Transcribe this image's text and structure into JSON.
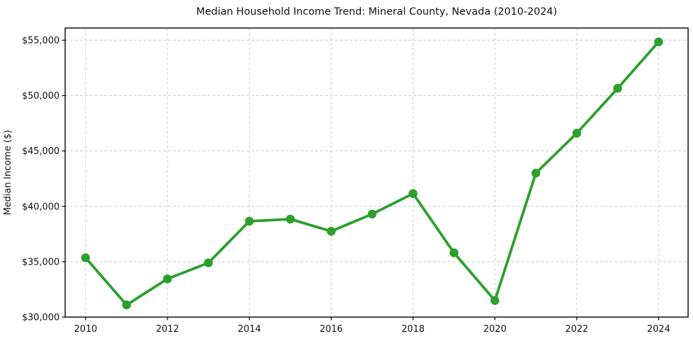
{
  "chart_data": {
    "type": "line",
    "title": "Median Household Income Trend: Mineral County, Nevada (2010-2024)",
    "xlabel": "",
    "ylabel": "Median Income ($)",
    "x": [
      2010,
      2011,
      2012,
      2013,
      2014,
      2015,
      2016,
      2017,
      2018,
      2019,
      2020,
      2021,
      2022,
      2023,
      2024
    ],
    "series": [
      {
        "name": "Median household income",
        "values": [
          35350,
          31100,
          33450,
          34900,
          38650,
          38850,
          37750,
          39300,
          41150,
          35800,
          31500,
          43000,
          46600,
          50650,
          54850
        ]
      }
    ],
    "xlim": [
      2009.5,
      2024.72
    ],
    "ylim": [
      30000,
      56100
    ],
    "x_ticks": [
      2010,
      2012,
      2014,
      2016,
      2018,
      2020,
      2022,
      2024
    ],
    "y_ticks": [
      30000,
      35000,
      40000,
      45000,
      50000,
      55000
    ],
    "y_tick_labels": [
      "$30,000",
      "$35,000",
      "$40,000",
      "$45,000",
      "$50,000",
      "$55,000"
    ],
    "grid": true,
    "grid_style": "dashed",
    "legend": false,
    "marker": "circle",
    "colors": {
      "line": "#2ca02c",
      "marker": "#2ca02c",
      "grid": "#cccccc",
      "spine": "#000000",
      "text": "#111111",
      "background": "#ffffff"
    }
  }
}
